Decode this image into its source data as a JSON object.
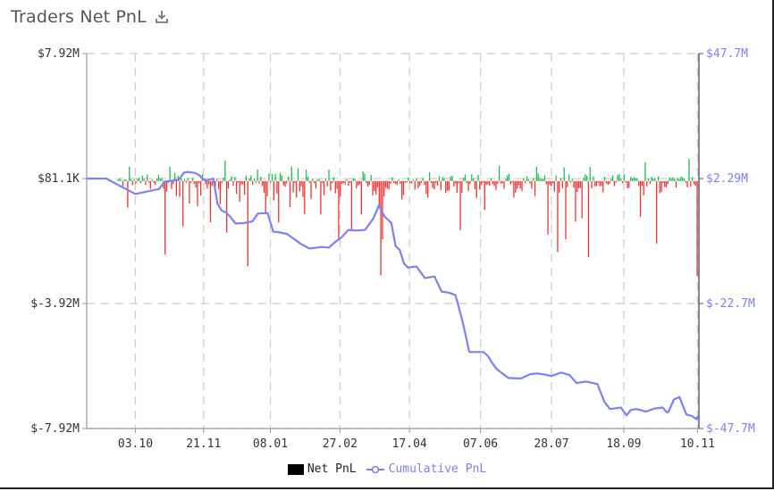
{
  "header": {
    "title": "Traders Net PnL",
    "download_icon": "download-icon"
  },
  "chart_data": {
    "type": "bar+line",
    "title": "Traders Net PnL",
    "x_ticks": [
      "03.10",
      "21.11",
      "08.01",
      "27.02",
      "17.04",
      "07.06",
      "28.07",
      "18.09",
      "10.11"
    ],
    "left_axis": {
      "ticks": [
        "$7.92M",
        "$81.1K",
        "$-3.92M",
        "$-7.92M"
      ],
      "tick_values": [
        7.92,
        0.0811,
        -3.92,
        -7.92
      ],
      "range": [
        -7.92,
        7.92
      ],
      "unit": "$M"
    },
    "right_axis": {
      "ticks": [
        "$47.7M",
        "$2.29M",
        "$-22.7M",
        "$-47.7M"
      ],
      "tick_values": [
        47.7,
        2.29,
        -22.7,
        -47.7
      ],
      "range": [
        -47.7,
        47.7
      ],
      "unit": "$M",
      "color": "#8080ee"
    },
    "colors": {
      "positive": "#22bb55",
      "negative": "#ee3333",
      "cumulative": "#8080ee",
      "grid": "#cccccc"
    },
    "grid": true,
    "legend_position": "bottom-center",
    "series": [
      {
        "name": "Net PnL",
        "kind": "bar",
        "axis": "left",
        "unit": "$M",
        "values": [
          0.05,
          0.09,
          0.04,
          -0.16,
          0.06,
          0.05,
          -0.85,
          0.82,
          0.06,
          -0.13,
          0.05,
          -0.08,
          0.09,
          0.14,
          -0.07,
          0.26,
          0.1,
          -0.12,
          0.33,
          -0.05,
          -0.25,
          0.05,
          -0.06,
          -0.13,
          0.1,
          0.3,
          0.07,
          0.12,
          -0.24,
          -2.35,
          -0.34,
          -0.06,
          0.82,
          -0.25,
          -0.09,
          0.44,
          -0.48,
          0.25,
          -0.5,
          0.1,
          -1.45,
          0.07,
          -0.06,
          0.11,
          -0.72,
          -0.05,
          0.12,
          -0.09,
          -0.21,
          -0.8,
          -0.07,
          -0.46,
          0.35,
          0.06,
          -0.1,
          -0.24,
          -0.1,
          -1.32,
          -0.16,
          -0.05,
          -0.19,
          0.07,
          -0.25,
          -0.74,
          -0.07,
          0.14,
          1.2,
          -1.65,
          -0.24,
          0.05,
          0.23,
          -0.15,
          0.19,
          -0.41,
          -0.05,
          -0.66,
          -0.1,
          -0.11,
          -0.44,
          0.26,
          -2.72,
          0.08,
          0.28,
          -0.12,
          0.1,
          -0.05,
          0.63,
          -0.08,
          0.19,
          -0.16,
          -0.37,
          -1.02,
          -0.49,
          0.39,
          -0.05,
          0.37,
          -0.62,
          0.37,
          -0.4,
          -1.32,
          0.45,
          0.29,
          -0.14,
          -0.18,
          -0.08,
          0.21,
          -0.84,
          0.84,
          -0.36,
          -0.06,
          -0.53,
          0.72,
          -0.33,
          -0.17,
          -0.51,
          -1.06,
          0.64,
          0.21,
          -0.05,
          -0.57,
          0.09,
          -0.06,
          -0.23,
          0.05,
          0.06,
          -1.07,
          -0.06,
          -0.45,
          0.11,
          -0.17,
          0.64,
          -0.31,
          -0.07,
          0.17,
          -0.39,
          -0.25,
          -1.86,
          -0.5,
          -0.09,
          -0.06,
          -0.11,
          0.06,
          -0.15,
          -0.05,
          -1.56,
          0.11,
          0.09,
          -0.23,
          -0.14,
          -0.11,
          -1.07,
          0.53,
          0.39,
          -0.06,
          -0.18,
          -0.12,
          0.3,
          -0.46,
          -0.32,
          -0.43,
          -0.2,
          -0.83,
          -3.02,
          -1.86,
          -0.5,
          -0.21,
          -0.23,
          -0.27,
          -0.09,
          0.15,
          -0.06,
          -0.08,
          -0.13,
          0.06,
          -0.09,
          -0.59,
          -0.45,
          -0.05,
          -0.05,
          0.15,
          -0.06,
          -0.08,
          0.06,
          -0.27,
          0.1,
          -0.23,
          -0.15,
          -0.06,
          0.13,
          -0.12,
          -0.41,
          -0.53,
          0.48,
          -0.06,
          -0.22,
          -0.26,
          -0.06,
          -0.14,
          0.23,
          -0.29,
          0.17,
          0.12,
          -0.38,
          -0.31,
          -0.3,
          0.21,
          0.25,
          -0.17,
          -0.08,
          -0.38,
          -0.07,
          -1.57,
          -0.37,
          0.13,
          0.32,
          -0.06,
          -0.32,
          -0.09,
          0.35,
          0.1,
          -0.26,
          -0.54,
          0.31,
          -0.27,
          -0.11,
          -0.05,
          -0.92,
          -0.12,
          -0.11,
          -0.15,
          0.08,
          -0.1,
          -0.16,
          -0.28,
          -0.09,
          0.89,
          -0.08,
          -0.07,
          -0.25,
          0.07,
          0.28,
          0.38,
          -0.11,
          -0.05,
          -0.52,
          -0.37,
          -0.25,
          -0.13,
          -0.24,
          -0.32,
          0.11,
          -0.06,
          0.22,
          0.07,
          -0.08,
          -0.24,
          0.11,
          -0.48,
          0.83,
          0.4,
          0.14,
          0.07,
          0.08,
          0.28,
          -0.1,
          -1.71,
          -0.12,
          -0.15,
          -0.07,
          -0.34,
          0.27,
          -2.27,
          -0.37,
          0.1,
          -0.23,
          0.78,
          -1.86,
          -0.19,
          0.34,
          -0.05,
          0.07,
          -0.21,
          -1.3,
          -0.35,
          -0.23,
          -0.22,
          -1.19,
          0.15,
          0.34,
          0.26,
          -2.44,
          0.81,
          -0.23,
          0.22,
          -0.17,
          -0.16,
          -0.05,
          -0.17,
          -0.15,
          -0.36,
          0.19,
          -0.08,
          -0.12,
          -0.09,
          0.13,
          0.28,
          -0.16,
          -0.05,
          0.3,
          0.37,
          0.06,
          -0.07,
          0.34,
          -0.05,
          -0.23,
          -0.22,
          0.18,
          0.08,
          0.16,
          0.11,
          0.09,
          -0.16,
          -1.14,
          -0.15,
          -0.46,
          1.09,
          -0.17,
          0.08,
          -0.09,
          0.19,
          0.08,
          0.1,
          -2.0,
          0.22,
          -0.39,
          -0.35,
          -0.06,
          -0.19,
          -0.2,
          -0.09,
          0.16,
          0.12,
          0.16,
          0.07,
          -0.21,
          0.11,
          0.06,
          0.21,
          0.16,
          0.1,
          -0.05,
          -0.2,
          1.32,
          -0.17,
          0.17,
          -0.1,
          -0.15,
          -3.05
        ]
      },
      {
        "name": "Cumulative PnL",
        "kind": "line",
        "axis": "right",
        "unit": "$M",
        "x_dates": [
          "2019-08-29",
          "2019-09-12",
          "2019-10-03",
          "2019-10-20",
          "2019-10-24",
          "2019-11-03",
          "2019-11-07",
          "2019-11-10",
          "2019-11-15",
          "2019-11-18",
          "2019-11-20",
          "2019-11-23",
          "2019-11-28",
          "2019-12-01",
          "2019-12-04",
          "2019-12-07",
          "2019-12-10",
          "2019-12-14",
          "2019-12-20",
          "2019-12-26",
          "2019-12-30",
          "2020-01-06",
          "2020-01-10",
          "2020-01-15",
          "2020-01-20",
          "2020-01-30",
          "2020-02-05",
          "2020-02-14",
          "2020-02-19",
          "2020-02-24",
          "2020-02-28",
          "2020-03-04",
          "2020-03-10",
          "2020-03-16",
          "2020-03-22",
          "2020-03-26",
          "2020-03-30",
          "2020-04-04",
          "2020-04-07",
          "2020-04-10",
          "2020-04-13",
          "2020-04-16",
          "2020-04-22",
          "2020-04-28",
          "2020-05-05",
          "2020-05-10",
          "2020-05-15",
          "2020-05-20",
          "2020-05-25",
          "2020-05-30",
          "2020-06-04",
          "2020-06-09",
          "2020-06-12",
          "2020-06-16",
          "2020-06-19",
          "2020-06-27",
          "2020-07-06",
          "2020-07-13",
          "2020-07-18",
          "2020-07-23",
          "2020-07-28",
          "2020-08-04",
          "2020-08-10",
          "2020-08-15",
          "2020-08-22",
          "2020-08-30",
          "2020-09-04",
          "2020-09-08",
          "2020-09-16",
          "2020-09-20",
          "2020-09-23",
          "2020-09-27",
          "2020-10-04",
          "2020-10-10",
          "2020-10-16",
          "2020-10-19",
          "2020-10-20",
          "2020-10-24",
          "2020-10-28",
          "2020-11-02",
          "2020-11-06",
          "2020-11-09",
          "2020-11-10",
          "2020-11-11"
        ],
        "values": [
          2.29,
          2.29,
          -0.8,
          0.2,
          1.7,
          2.0,
          4.5,
          4.7,
          4.3,
          3.5,
          2.3,
          1.9,
          2.3,
          -2.7,
          -4.1,
          -4.5,
          -5.3,
          -6.7,
          -6.6,
          -6.3,
          -4.7,
          -4.6,
          -8.3,
          -8.5,
          -8.8,
          -10.8,
          -11.7,
          -11.4,
          -11.5,
          -10.3,
          -9.5,
          -8.0,
          -8.1,
          -8.0,
          -5.7,
          -3.1,
          -5.3,
          -6.6,
          -11.2,
          -12.0,
          -14.7,
          -15.5,
          -15.3,
          -17.6,
          -17.3,
          -20.3,
          -20.5,
          -21.0,
          -26.1,
          -32.4,
          -32.4,
          -32.4,
          -33.1,
          -34.8,
          -35.9,
          -37.6,
          -37.7,
          -36.8,
          -36.7,
          -36.9,
          -37.2,
          -36.5,
          -37.0,
          -38.6,
          -38.3,
          -38.8,
          -42.3,
          -43.8,
          -43.5,
          -45.1,
          -44.0,
          -43.8,
          -44.3,
          -43.7,
          -43.5,
          -44.5,
          -44.4,
          -41.9,
          -41.4,
          -44.9,
          -45.2,
          -45.8,
          -45.4,
          -46.3
        ]
      }
    ],
    "x_range": [
      "2019-08-29",
      "2020-11-11"
    ],
    "x_tick_dates": [
      "2019-10-03",
      "2019-11-21",
      "2020-01-08",
      "2020-02-27",
      "2020-04-17",
      "2020-06-07",
      "2020-07-28",
      "2020-09-18",
      "2020-11-10"
    ]
  },
  "legend": {
    "net_label": "Net PnL",
    "cum_label": "Cumulative PnL"
  }
}
